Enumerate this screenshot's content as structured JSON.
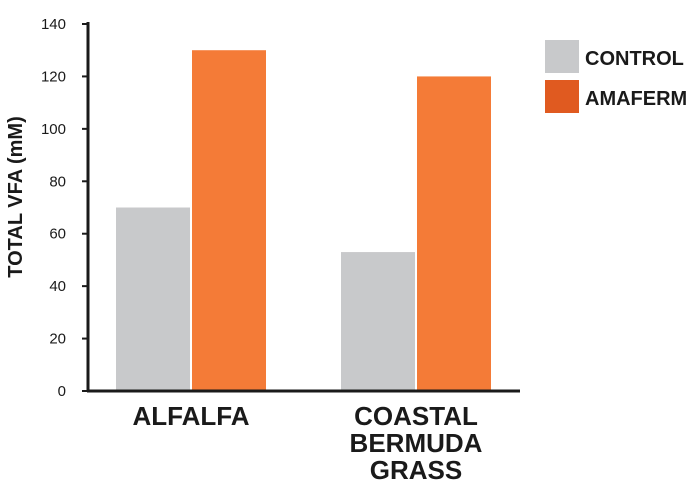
{
  "chart_data": {
    "type": "bar",
    "title": "",
    "ylabel": "TOTAL VFA (mM)",
    "xlabel": "",
    "ylim": [
      0,
      140
    ],
    "yticks": [
      0,
      20,
      40,
      60,
      80,
      100,
      120,
      140
    ],
    "categories": [
      [
        "ALFALFA"
      ],
      [
        "COASTAL",
        "BERMUDA",
        "GRASS"
      ]
    ],
    "series": [
      {
        "name": "CONTROL",
        "color": "#c8c9cb",
        "values": [
          70,
          53
        ]
      },
      {
        "name": "AMAFERM",
        "color": "#f47b37",
        "values": [
          130,
          120
        ]
      }
    ],
    "legend_position": "top-right",
    "legend_swatch_colors": [
      "#c8c9cb",
      "#e05a20"
    ],
    "grid": false
  }
}
